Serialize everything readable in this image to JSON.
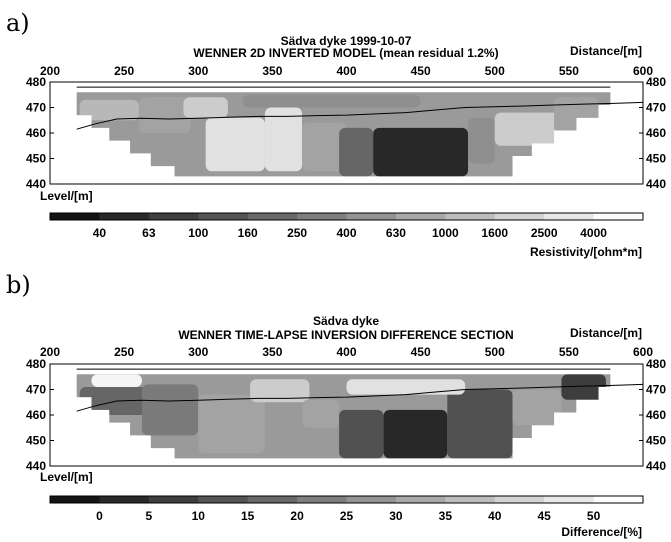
{
  "panels": [
    {
      "label": "a)",
      "title": "Sädva dyke 1999-10-07",
      "subtitle": "WENNER 2D INVERTED MODEL (mean residual 1.2%)",
      "distance_label": "Distance/[m]",
      "level_label": "Level/[m]",
      "colorbar_label": "Resistivity/[ohm*m]"
    },
    {
      "label": "b)",
      "title": "Sädva dyke",
      "subtitle": "WENNER TIME-LAPSE INVERSION DIFFERENCE SECTION",
      "distance_label": "Distance/[m]",
      "level_label": "Level/[m]",
      "colorbar_label": "Difference/[%]"
    }
  ],
  "chart_data": [
    {
      "type": "heatmap",
      "title": "Sädva dyke 1999-10-07",
      "subtitle": "WENNER 2D INVERTED MODEL (mean residual 1.2%)",
      "xlabel": "Distance/[m]",
      "ylabel": "Level/[m]",
      "xlim": [
        200,
        600
      ],
      "ylim": [
        440,
        480
      ],
      "x_ticks": [
        200,
        250,
        300,
        350,
        400,
        450,
        500,
        550,
        600
      ],
      "y_ticks": [
        480,
        470,
        460,
        450,
        440
      ],
      "colorscale": "grayscale, dark = low resistivity, light = high resistivity",
      "colorbar": {
        "label": "Resistivity/[ohm*m]",
        "ticks": [
          "40",
          "63",
          "100",
          "160",
          "250",
          "400",
          "630",
          "1000",
          "1600",
          "2500",
          "4000"
        ]
      },
      "surface_profile": {
        "x": [
          218,
          230,
          245,
          262,
          280,
          300,
          320,
          340,
          360,
          380,
          400,
          420,
          440,
          460,
          480,
          500,
          520,
          540,
          560,
          580,
          600
        ],
        "y": [
          461.5,
          463.5,
          465.5,
          465.8,
          465.5,
          465.8,
          466.2,
          466.5,
          466.5,
          466.8,
          467.0,
          467.5,
          468.0,
          469.0,
          470.0,
          470.3,
          470.6,
          471.0,
          471.3,
          471.6,
          472.0
        ]
      },
      "cells": [
        {
          "x": [
            220,
            260
          ],
          "y": [
            465,
            473
          ],
          "level": 7
        },
        {
          "x": [
            260,
            295
          ],
          "y": [
            460,
            474
          ],
          "level": 6
        },
        {
          "x": [
            290,
            320
          ],
          "y": [
            466,
            474
          ],
          "level": 8
        },
        {
          "x": [
            305,
            345
          ],
          "y": [
            445,
            466
          ],
          "level": 9
        },
        {
          "x": [
            345,
            370
          ],
          "y": [
            445,
            470
          ],
          "level": 9
        },
        {
          "x": [
            370,
            400
          ],
          "y": [
            445,
            464
          ],
          "level": 6
        },
        {
          "x": [
            395,
            418
          ],
          "y": [
            443,
            462
          ],
          "level": 3
        },
        {
          "x": [
            418,
            482
          ],
          "y": [
            443,
            462
          ],
          "level": 0
        },
        {
          "x": [
            482,
            500
          ],
          "y": [
            448,
            466
          ],
          "level": 5
        },
        {
          "x": [
            500,
            545
          ],
          "y": [
            455,
            468
          ],
          "level": 8
        },
        {
          "x": [
            540,
            570
          ],
          "y": [
            460,
            474
          ],
          "level": 6
        },
        {
          "x": [
            330,
            450
          ],
          "y": [
            470,
            475
          ],
          "level": 5
        }
      ]
    },
    {
      "type": "heatmap",
      "title": "Sädva dyke",
      "subtitle": "WENNER TIME-LAPSE INVERSION DIFFERENCE SECTION",
      "xlabel": "Distance/[m]",
      "ylabel": "Level/[m]",
      "xlim": [
        200,
        600
      ],
      "ylim": [
        440,
        480
      ],
      "x_ticks": [
        200,
        250,
        300,
        350,
        400,
        450,
        500,
        550,
        600
      ],
      "y_ticks": [
        480,
        470,
        460,
        450,
        440
      ],
      "colorscale": "grayscale, dark = low difference, light = high difference",
      "colorbar": {
        "label": "Difference/[%]",
        "ticks": [
          "0",
          "5",
          "10",
          "15",
          "20",
          "25",
          "30",
          "35",
          "40",
          "45",
          "50"
        ]
      },
      "surface_profile": {
        "x": [
          218,
          230,
          245,
          262,
          280,
          300,
          320,
          340,
          360,
          380,
          400,
          420,
          440,
          460,
          480,
          500,
          520,
          540,
          560,
          580,
          600
        ],
        "y": [
          461.5,
          463.5,
          465.5,
          465.8,
          465.5,
          465.8,
          466.2,
          466.5,
          466.5,
          466.8,
          467.0,
          467.5,
          468.0,
          469.0,
          470.0,
          470.3,
          470.6,
          471.0,
          471.3,
          471.6,
          472.0
        ]
      },
      "cells": [
        {
          "x": [
            228,
            262
          ],
          "y": [
            471,
            476
          ],
          "level": 10
        },
        {
          "x": [
            220,
            265
          ],
          "y": [
            460,
            471
          ],
          "level": 3
        },
        {
          "x": [
            262,
            300
          ],
          "y": [
            452,
            472
          ],
          "level": 4
        },
        {
          "x": [
            300,
            345
          ],
          "y": [
            445,
            468
          ],
          "level": 6
        },
        {
          "x": [
            335,
            375
          ],
          "y": [
            465,
            474
          ],
          "level": 8
        },
        {
          "x": [
            370,
            395
          ],
          "y": [
            455,
            466
          ],
          "level": 6
        },
        {
          "x": [
            395,
            425
          ],
          "y": [
            443,
            462
          ],
          "level": 2
        },
        {
          "x": [
            425,
            468
          ],
          "y": [
            443,
            462
          ],
          "level": 0
        },
        {
          "x": [
            468,
            512
          ],
          "y": [
            443,
            470
          ],
          "level": 2
        },
        {
          "x": [
            512,
            545
          ],
          "y": [
            456,
            470
          ],
          "level": 6
        },
        {
          "x": [
            545,
            575
          ],
          "y": [
            466,
            476
          ],
          "level": 1
        },
        {
          "x": [
            400,
            480
          ],
          "y": [
            468,
            474
          ],
          "level": 9
        }
      ]
    }
  ]
}
